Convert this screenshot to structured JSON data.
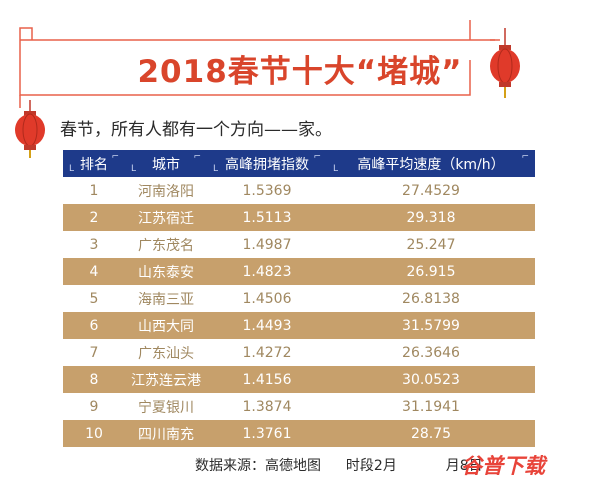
{
  "title": "2018春节十大“堵城”",
  "subtitle": "春节，所有人都有一个方向——家。",
  "table": {
    "headers": [
      "排名",
      "城市",
      "高峰拥堵指数",
      "高峰平均速度（km/h）"
    ],
    "rows": [
      [
        "1",
        "河南洛阳",
        "1.5369",
        "27.4529"
      ],
      [
        "2",
        "江苏宿迁",
        "1.5113",
        "29.318"
      ],
      [
        "3",
        "广东茂名",
        "1.4987",
        "25.247"
      ],
      [
        "4",
        "山东泰安",
        "1.4823",
        "26.915"
      ],
      [
        "5",
        "海南三亚",
        "1.4506",
        "26.8138"
      ],
      [
        "6",
        "山西大同",
        "1.4493",
        "31.5799"
      ],
      [
        "7",
        "广东汕头",
        "1.4272",
        "26.3646"
      ],
      [
        "8",
        "江苏连云港",
        "1.4156",
        "30.0523"
      ],
      [
        "9",
        "宁夏银川",
        "1.3874",
        "31.1941"
      ],
      [
        "10",
        "四川南充",
        "1.3761",
        "28.75"
      ]
    ]
  },
  "footer": {
    "source": "数据来源：高德地图",
    "period": "时段2月",
    "period_tail": "月8日"
  },
  "watermark": "谷普下载",
  "colors": {
    "title": "#d9452b",
    "header_bg": "#1e3a8a",
    "stripe": "#c7a06c",
    "frame": "#e8604a",
    "lantern": "#e03a2a"
  }
}
